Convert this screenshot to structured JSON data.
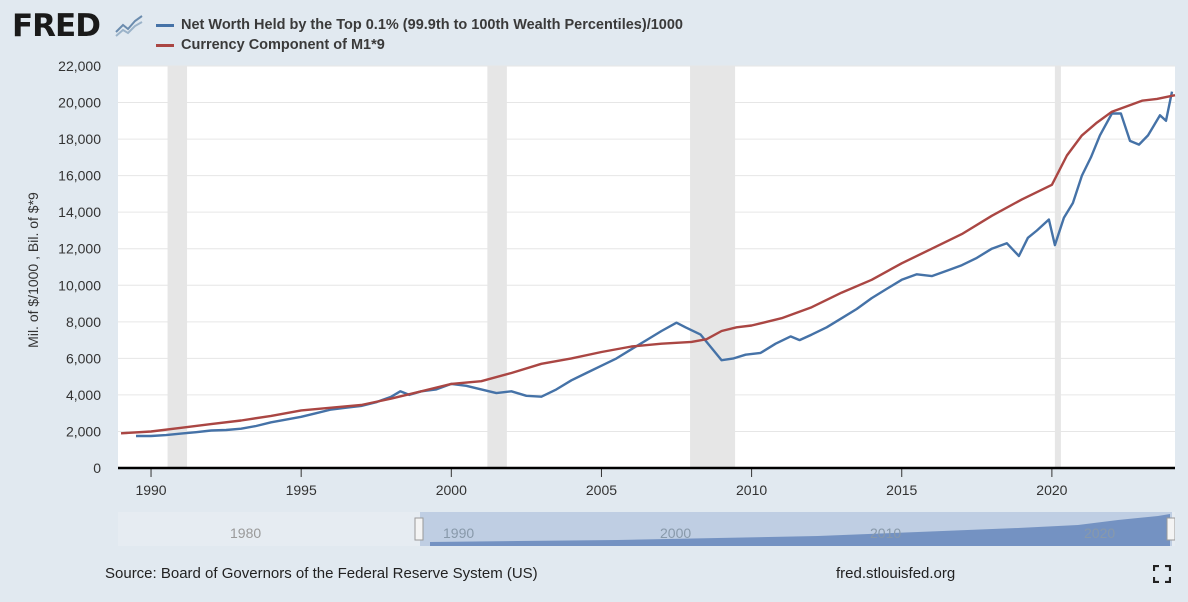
{
  "brand": {
    "logo_text": "FRED"
  },
  "legend": [
    {
      "label": "Net Worth Held by the Top 0.1% (99.9th to 100th Wealth Percentiles)/1000",
      "color": "#4572a7"
    },
    {
      "label": "Currency Component of M1*9",
      "color": "#aa4643"
    }
  ],
  "footer": {
    "source": "Source: Board of Governors of the Federal Reserve System (US)",
    "url": "fred.stlouisfed.org"
  },
  "navigator": {
    "labels": [
      "1980",
      "1990",
      "2000",
      "2010",
      "2020"
    ]
  },
  "chart_data": {
    "type": "line",
    "title": "",
    "xlabel": "",
    "ylabel": "Mil. of $/1000 , Bil. of $*9",
    "xlim": [
      1988.9,
      2024.1
    ],
    "ylim": [
      0,
      22000
    ],
    "yticks": [
      0,
      2000,
      4000,
      6000,
      8000,
      10000,
      12000,
      14000,
      16000,
      18000,
      20000,
      22000
    ],
    "ytick_labels": [
      "0",
      "2,000",
      "4,000",
      "6,000",
      "8,000",
      "10,000",
      "12,000",
      "14,000",
      "16,000",
      "18,000",
      "20,000",
      "22,000"
    ],
    "xticks": [
      1990,
      1995,
      2000,
      2005,
      2010,
      2015,
      2020
    ],
    "xtick_labels": [
      "1990",
      "1995",
      "2000",
      "2005",
      "2010",
      "2015",
      "2020"
    ],
    "recessions": [
      [
        1990.55,
        1991.2
      ],
      [
        2001.2,
        2001.85
      ],
      [
        2007.95,
        2009.45
      ],
      [
        2020.1,
        2020.3
      ]
    ],
    "series": [
      {
        "name": "Net Worth Held by the Top 0.1% (99.9th to 100th Wealth Percentiles)/1000",
        "color": "#4572a7",
        "points": [
          [
            1989.5,
            1750
          ],
          [
            1990.0,
            1750
          ],
          [
            1990.5,
            1800
          ],
          [
            1991.0,
            1880
          ],
          [
            1991.5,
            1960
          ],
          [
            1992.0,
            2050
          ],
          [
            1992.5,
            2080
          ],
          [
            1993.0,
            2150
          ],
          [
            1993.5,
            2300
          ],
          [
            1994.0,
            2500
          ],
          [
            1994.5,
            2650
          ],
          [
            1995.0,
            2800
          ],
          [
            1995.5,
            3000
          ],
          [
            1996.0,
            3200
          ],
          [
            1996.5,
            3300
          ],
          [
            1997.0,
            3400
          ],
          [
            1997.5,
            3600
          ],
          [
            1998.0,
            3900
          ],
          [
            1998.3,
            4200
          ],
          [
            1998.6,
            4000
          ],
          [
            1999.0,
            4200
          ],
          [
            1999.5,
            4300
          ],
          [
            2000.0,
            4600
          ],
          [
            2000.5,
            4500
          ],
          [
            2001.0,
            4300
          ],
          [
            2001.5,
            4100
          ],
          [
            2002.0,
            4200
          ],
          [
            2002.5,
            3950
          ],
          [
            2003.0,
            3900
          ],
          [
            2003.5,
            4300
          ],
          [
            2004.0,
            4800
          ],
          [
            2004.5,
            5200
          ],
          [
            2005.0,
            5600
          ],
          [
            2005.5,
            6000
          ],
          [
            2006.0,
            6500
          ],
          [
            2006.5,
            7000
          ],
          [
            2007.0,
            7500
          ],
          [
            2007.5,
            7950
          ],
          [
            2007.8,
            7700
          ],
          [
            2008.3,
            7300
          ],
          [
            2008.7,
            6500
          ],
          [
            2009.0,
            5900
          ],
          [
            2009.4,
            6000
          ],
          [
            2009.8,
            6200
          ],
          [
            2010.3,
            6300
          ],
          [
            2010.8,
            6800
          ],
          [
            2011.3,
            7200
          ],
          [
            2011.6,
            7000
          ],
          [
            2012.0,
            7300
          ],
          [
            2012.5,
            7700
          ],
          [
            2013.0,
            8200
          ],
          [
            2013.5,
            8700
          ],
          [
            2014.0,
            9300
          ],
          [
            2014.5,
            9800
          ],
          [
            2015.0,
            10300
          ],
          [
            2015.5,
            10600
          ],
          [
            2016.0,
            10500
          ],
          [
            2016.5,
            10800
          ],
          [
            2017.0,
            11100
          ],
          [
            2017.5,
            11500
          ],
          [
            2018.0,
            12000
          ],
          [
            2018.5,
            12300
          ],
          [
            2018.9,
            11600
          ],
          [
            2019.2,
            12600
          ],
          [
            2019.5,
            13000
          ],
          [
            2019.9,
            13600
          ],
          [
            2020.1,
            12200
          ],
          [
            2020.4,
            13700
          ],
          [
            2020.7,
            14500
          ],
          [
            2021.0,
            16000
          ],
          [
            2021.3,
            17000
          ],
          [
            2021.6,
            18200
          ],
          [
            2022.0,
            19400
          ],
          [
            2022.3,
            19400
          ],
          [
            2022.6,
            17900
          ],
          [
            2022.9,
            17700
          ],
          [
            2023.2,
            18200
          ],
          [
            2023.6,
            19300
          ],
          [
            2023.8,
            19000
          ],
          [
            2024.0,
            20600
          ]
        ]
      },
      {
        "name": "Currency Component of M1*9",
        "color": "#aa4643",
        "points": [
          [
            1989.0,
            1900
          ],
          [
            1990.0,
            2000
          ],
          [
            1991.0,
            2200
          ],
          [
            1992.0,
            2400
          ],
          [
            1993.0,
            2600
          ],
          [
            1994.0,
            2850
          ],
          [
            1995.0,
            3150
          ],
          [
            1996.0,
            3300
          ],
          [
            1997.0,
            3450
          ],
          [
            1998.0,
            3800
          ],
          [
            1999.0,
            4200
          ],
          [
            2000.0,
            4600
          ],
          [
            2001.0,
            4750
          ],
          [
            2002.0,
            5200
          ],
          [
            2003.0,
            5700
          ],
          [
            2004.0,
            6000
          ],
          [
            2005.0,
            6350
          ],
          [
            2006.0,
            6650
          ],
          [
            2007.0,
            6800
          ],
          [
            2008.0,
            6900
          ],
          [
            2008.5,
            7050
          ],
          [
            2009.0,
            7500
          ],
          [
            2009.5,
            7700
          ],
          [
            2010.0,
            7800
          ],
          [
            2011.0,
            8200
          ],
          [
            2012.0,
            8800
          ],
          [
            2013.0,
            9600
          ],
          [
            2014.0,
            10300
          ],
          [
            2015.0,
            11200
          ],
          [
            2016.0,
            12000
          ],
          [
            2017.0,
            12800
          ],
          [
            2018.0,
            13800
          ],
          [
            2019.0,
            14700
          ],
          [
            2020.0,
            15500
          ],
          [
            2020.5,
            17100
          ],
          [
            2021.0,
            18200
          ],
          [
            2021.5,
            18900
          ],
          [
            2022.0,
            19500
          ],
          [
            2022.5,
            19800
          ],
          [
            2023.0,
            20100
          ],
          [
            2023.5,
            20200
          ],
          [
            2024.1,
            20400
          ]
        ]
      }
    ]
  }
}
